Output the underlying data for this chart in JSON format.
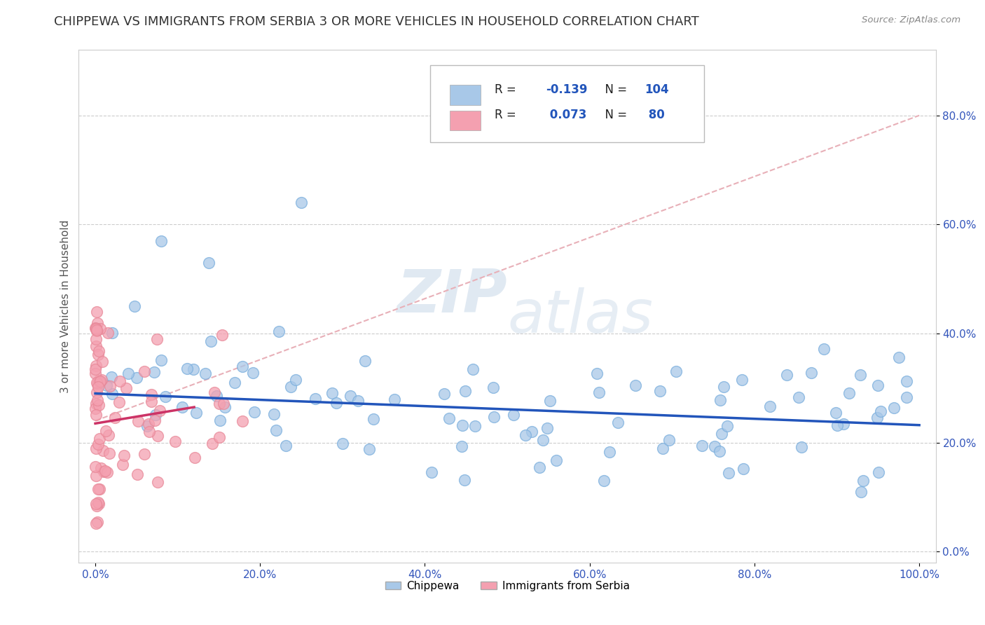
{
  "title": "CHIPPEWA VS IMMIGRANTS FROM SERBIA 3 OR MORE VEHICLES IN HOUSEHOLD CORRELATION CHART",
  "source": "Source: ZipAtlas.com",
  "ylabel": "3 or more Vehicles in Household",
  "legend_label1": "Chippewa",
  "legend_label2": "Immigrants from Serbia",
  "R1": -0.139,
  "N1": 104,
  "R2": 0.073,
  "N2": 80,
  "color1": "#a8c8e8",
  "color2": "#f4a0b0",
  "line_color1": "#2255bb",
  "line_color2": "#cc3366",
  "dash_color": "#e8b0b8",
  "watermark": "ZIPatlas",
  "background_color": "#ffffff",
  "title_fontsize": 13,
  "axis_fontsize": 11,
  "tick_fontsize": 11
}
